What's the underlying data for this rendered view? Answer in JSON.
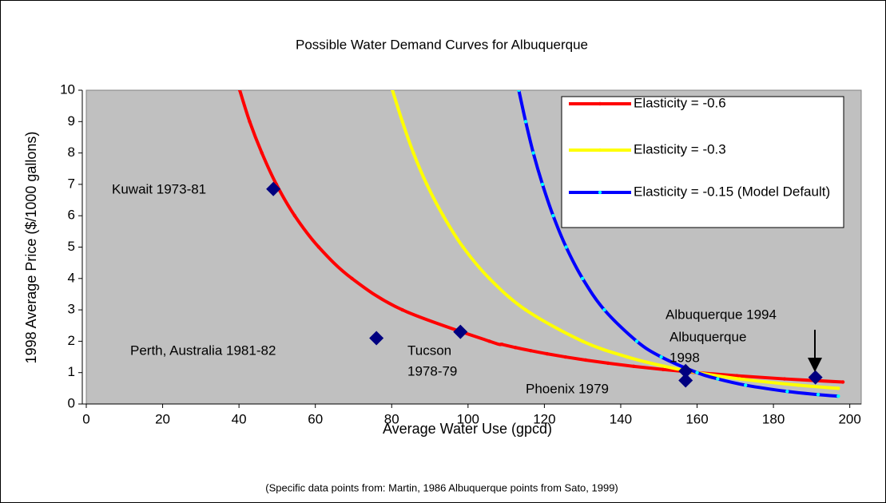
{
  "chart_data": {
    "type": "line",
    "title": "Possible Water Demand Curves for Albuquerque",
    "x_label": "Average Water Use (gpcd)",
    "y_label": "1998 Average Price ($/1000 gallons)",
    "footnote": "(Specific data points from:  Martin, 1986  Albuquerque points from Sato, 1999)",
    "xlim": [
      0,
      203
    ],
    "ylim": [
      0,
      10
    ],
    "xticks": [
      0,
      20,
      40,
      60,
      80,
      100,
      120,
      140,
      160,
      180,
      200
    ],
    "yticks": [
      0,
      1,
      2,
      3,
      4,
      5,
      6,
      7,
      8,
      9,
      10
    ],
    "background": "#c0c0c0",
    "legend_position": "upper right",
    "series": [
      {
        "name": "Elasticity = -0.6",
        "color": "#ff0000",
        "marker_color": "#ff0000",
        "x": [
          40.2,
          42.8,
          46.0,
          49.8,
          54.6,
          60.9,
          69.6,
          82.8,
          105.6,
          108.9,
          112.4,
          116.4,
          120.7,
          125.5,
          130.8,
          136.7,
          143.4,
          151.1,
          160,
          170.4,
          182.9,
          198.2
        ],
        "values": [
          10,
          9,
          8,
          7,
          6,
          5,
          4,
          3,
          2,
          1.9,
          1.8,
          1.7,
          1.6,
          1.5,
          1.4,
          1.3,
          1.2,
          1.1,
          1,
          0.9,
          0.8,
          0.7
        ]
      },
      {
        "name": "Elasticity = -0.3",
        "color": "#ffff00",
        "marker_color": "#ffff00",
        "x": [
          80.2,
          82.8,
          85.7,
          89.2,
          93.5,
          98.7,
          105.6,
          115.1,
          130.0,
          141.7,
          151.5,
          160,
          171.1,
          186.5,
          197.0
        ],
        "values": [
          10,
          9,
          8,
          7,
          6,
          5,
          4,
          3,
          2,
          1.5,
          1.2,
          1,
          0.8,
          0.6,
          0.5
        ]
      },
      {
        "name": "Elasticity = -0.15 (Model Default)",
        "color": "#0000ff",
        "marker_color": "#00ffff",
        "x": [
          113.3,
          115.1,
          117.1,
          119.5,
          122.3,
          125.7,
          130.0,
          135.7,
          144.2,
          150.6,
          160,
          165.4,
          172.7,
          183.6,
          191.7,
          197.0
        ],
        "values": [
          10,
          9,
          8,
          7,
          6,
          5,
          4,
          3,
          2,
          1.5,
          1,
          0.8,
          0.6,
          0.4,
          0.3,
          0.25
        ]
      }
    ],
    "points_color": "#000080",
    "points": [
      {
        "label": [
          "Kuwait 1973-81"
        ],
        "x": 49,
        "y": 6.85
      },
      {
        "label": [
          "Perth, Australia 1981-82"
        ],
        "x": 76,
        "y": 2.1
      },
      {
        "label": [
          "Tucson",
          "1978-79"
        ],
        "x": 98,
        "y": 2.3
      },
      {
        "label": [
          "Albuquerque",
          "1998"
        ],
        "x": 157,
        "y": 1.05
      },
      {
        "label": [
          "Phoenix 1979"
        ],
        "x": 157,
        "y": 0.75
      },
      {
        "label": [
          "Albuquerque  1994"
        ],
        "x": 191,
        "y": 0.85
      }
    ]
  }
}
